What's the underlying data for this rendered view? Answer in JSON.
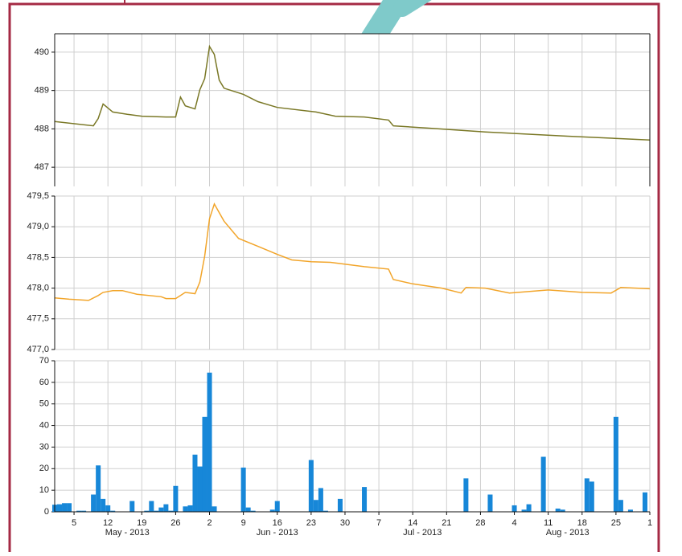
{
  "chart_data": [
    {
      "type": "line",
      "color": "#7a7826",
      "xlim": [
        "2013-05-01",
        "2013-09-01"
      ],
      "ylim": [
        486.5,
        490.48
      ],
      "yticks": [
        487,
        488,
        489,
        490
      ],
      "x": [
        "2013-05-01",
        "2013-05-09",
        "2013-05-10",
        "2013-05-11",
        "2013-05-13",
        "2013-05-16",
        "2013-05-19",
        "2013-05-24",
        "2013-05-26",
        "2013-05-27",
        "2013-05-28",
        "2013-05-30",
        "2013-05-31",
        "2013-06-01",
        "2013-06-02",
        "2013-06-03",
        "2013-06-04",
        "2013-06-05",
        "2013-06-09",
        "2013-06-12",
        "2013-06-16",
        "2013-06-24",
        "2013-06-28",
        "2013-07-04",
        "2013-07-09",
        "2013-07-10",
        "2013-07-17",
        "2013-07-29",
        "2013-08-15",
        "2013-09-01"
      ],
      "values": [
        488.19,
        488.08,
        488.27,
        488.65,
        488.44,
        488.38,
        488.33,
        488.31,
        488.31,
        488.83,
        488.6,
        488.52,
        489.02,
        489.31,
        490.15,
        489.94,
        489.27,
        489.06,
        488.9,
        488.71,
        488.56,
        488.44,
        488.33,
        488.31,
        488.23,
        488.08,
        488.02,
        487.92,
        487.81,
        487.71
      ]
    },
    {
      "type": "line",
      "color": "#f2a52a",
      "xlim": [
        "2013-05-01",
        "2013-09-01"
      ],
      "ylim": [
        477.0,
        479.5
      ],
      "yticks": [
        {
          "value": 477.0,
          "label": "477,0"
        },
        {
          "value": 477.5,
          "label": "477,5"
        },
        {
          "value": 478.0,
          "label": "478,0"
        },
        {
          "value": 478.5,
          "label": "478,5"
        },
        {
          "value": 479.0,
          "label": "479,0"
        },
        {
          "value": 479.5,
          "label": "479,5"
        }
      ],
      "x": [
        "2013-05-01",
        "2013-05-04",
        "2013-05-08",
        "2013-05-10",
        "2013-05-11",
        "2013-05-13",
        "2013-05-15",
        "2013-05-18",
        "2013-05-23",
        "2013-05-24",
        "2013-05-26",
        "2013-05-28",
        "2013-05-30",
        "2013-05-31",
        "2013-06-01",
        "2013-06-02",
        "2013-06-03",
        "2013-06-05",
        "2013-06-08",
        "2013-06-12",
        "2013-06-16",
        "2013-06-19",
        "2013-06-23",
        "2013-06-27",
        "2013-07-04",
        "2013-07-09",
        "2013-07-10",
        "2013-07-14",
        "2013-07-20",
        "2013-07-24",
        "2013-07-25",
        "2013-07-29",
        "2013-08-03",
        "2013-08-11",
        "2013-08-18",
        "2013-08-24",
        "2013-08-26",
        "2013-09-01"
      ],
      "values": [
        477.84,
        477.82,
        477.8,
        477.88,
        477.93,
        477.96,
        477.96,
        477.9,
        477.86,
        477.83,
        477.83,
        477.93,
        477.91,
        478.1,
        478.52,
        479.13,
        479.37,
        479.09,
        478.81,
        478.68,
        478.55,
        478.46,
        478.43,
        478.42,
        478.35,
        478.31,
        478.14,
        478.07,
        478.0,
        477.92,
        478.01,
        478.0,
        477.92,
        477.97,
        477.93,
        477.92,
        478.01,
        477.99
      ]
    },
    {
      "type": "bar",
      "color": "#1787d8",
      "xlim": [
        "2013-05-01",
        "2013-09-01"
      ],
      "ylim": [
        0,
        70
      ],
      "yticks": [
        0,
        10,
        20,
        30,
        40,
        50,
        60,
        70
      ],
      "xticks": [
        {
          "value": "2013-05-05",
          "label": "5"
        },
        {
          "value": "2013-05-12",
          "label": "12"
        },
        {
          "value": "2013-05-19",
          "label": "19"
        },
        {
          "value": "2013-05-26",
          "label": "26"
        },
        {
          "value": "2013-06-02",
          "label": "2"
        },
        {
          "value": "2013-06-09",
          "label": "9"
        },
        {
          "value": "2013-06-16",
          "label": "16"
        },
        {
          "value": "2013-06-23",
          "label": "23"
        },
        {
          "value": "2013-06-30",
          "label": "30"
        },
        {
          "value": "2013-07-07",
          "label": "7"
        },
        {
          "value": "2013-07-14",
          "label": "14"
        },
        {
          "value": "2013-07-21",
          "label": "21"
        },
        {
          "value": "2013-07-28",
          "label": "28"
        },
        {
          "value": "2013-08-04",
          "label": "4"
        },
        {
          "value": "2013-08-11",
          "label": "11"
        },
        {
          "value": "2013-08-18",
          "label": "18"
        },
        {
          "value": "2013-08-25",
          "label": "25"
        },
        {
          "value": "2013-09-01",
          "label": "1"
        }
      ],
      "month_labels": [
        {
          "value": "2013-05-16",
          "label": "May - 2013"
        },
        {
          "value": "2013-06-16",
          "label": "Jun - 2013"
        },
        {
          "value": "2013-07-16",
          "label": "Jul - 2013"
        },
        {
          "value": "2013-08-15",
          "label": "Aug - 2013"
        }
      ],
      "x": [
        "2013-05-01",
        "2013-05-02",
        "2013-05-03",
        "2013-05-04",
        "2013-05-06",
        "2013-05-07",
        "2013-05-09",
        "2013-05-10",
        "2013-05-11",
        "2013-05-12",
        "2013-05-13",
        "2013-05-17",
        "2013-05-20",
        "2013-05-21",
        "2013-05-22",
        "2013-05-23",
        "2013-05-24",
        "2013-05-25",
        "2013-05-26",
        "2013-05-28",
        "2013-05-29",
        "2013-05-30",
        "2013-05-31",
        "2013-06-01",
        "2013-06-02",
        "2013-06-03",
        "2013-06-09",
        "2013-06-10",
        "2013-06-11",
        "2013-06-15",
        "2013-06-16",
        "2013-06-23",
        "2013-06-24",
        "2013-06-25",
        "2013-06-26",
        "2013-06-29",
        "2013-07-04",
        "2013-07-25",
        "2013-07-30",
        "2013-08-04",
        "2013-08-06",
        "2013-08-07",
        "2013-08-10",
        "2013-08-13",
        "2013-08-14",
        "2013-08-19",
        "2013-08-20",
        "2013-08-25",
        "2013-08-26",
        "2013-08-28",
        "2013-08-31"
      ],
      "values": [
        3.3,
        3.5,
        4,
        4,
        0.5,
        0.5,
        8,
        21.5,
        6,
        3,
        0.5,
        5,
        0.5,
        5,
        0.5,
        2,
        3.5,
        0.5,
        12,
        2.5,
        3,
        26.5,
        21,
        44,
        64.5,
        2.5,
        20.5,
        2,
        0.5,
        1,
        5,
        24,
        5.5,
        11,
        0.5,
        6,
        11.5,
        15.5,
        8,
        3,
        1,
        3.5,
        25.5,
        1.5,
        1,
        15.5,
        14,
        44,
        5.5,
        1,
        9
      ]
    }
  ]
}
